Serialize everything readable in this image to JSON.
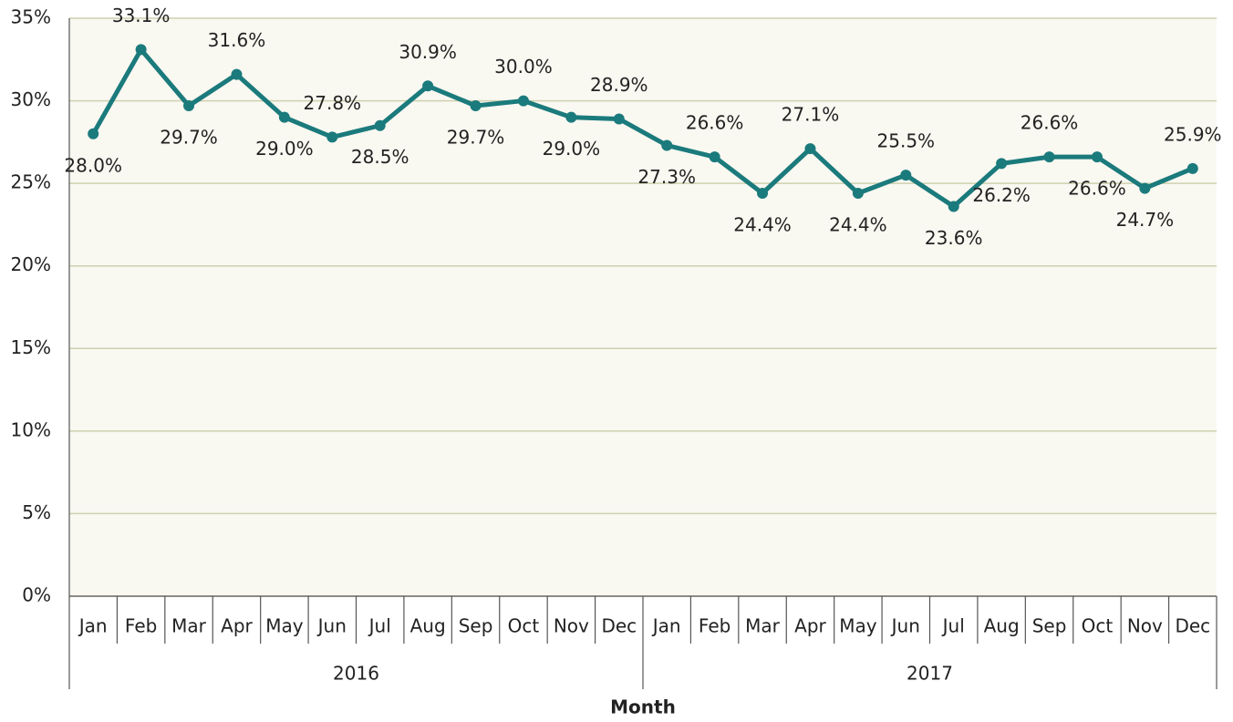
{
  "chart_data": {
    "type": "line",
    "x_label": "Month",
    "groups": [
      {
        "name": "2016",
        "categories": [
          "Jan",
          "Feb",
          "Mar",
          "Apr",
          "May",
          "Jun",
          "Jul",
          "Aug",
          "Sep",
          "Oct",
          "Nov",
          "Dec"
        ]
      },
      {
        "name": "2017",
        "categories": [
          "Jan",
          "Feb",
          "Mar",
          "Apr",
          "May",
          "Jun",
          "Jul",
          "Aug",
          "Sep",
          "Oct",
          "Nov",
          "Dec"
        ]
      }
    ],
    "values": [
      28.0,
      33.1,
      29.7,
      31.6,
      29.0,
      27.8,
      28.5,
      30.9,
      29.7,
      30.0,
      29.0,
      28.9,
      27.3,
      26.6,
      24.4,
      27.1,
      24.4,
      25.5,
      23.6,
      26.2,
      26.6,
      26.6,
      24.7,
      25.9
    ],
    "value_labels": [
      "28.0%",
      "33.1%",
      "29.7%",
      "31.6%",
      "29.0%",
      "27.8%",
      "28.5%",
      "30.9%",
      "29.7%",
      "30.0%",
      "29.0%",
      "28.9%",
      "27.3%",
      "26.6%",
      "24.4%",
      "27.1%",
      "24.4%",
      "25.5%",
      "23.6%",
      "26.2%",
      "26.6%",
      "26.6%",
      "24.7%",
      "25.9%"
    ],
    "color": "#1b7a7c",
    "ylim": [
      0,
      35
    ],
    "yticks": [
      {
        "value": 0,
        "label": "0%"
      },
      {
        "value": 5,
        "label": "5%"
      },
      {
        "value": 10,
        "label": "10%"
      },
      {
        "value": 15,
        "label": "15%"
      },
      {
        "value": 20,
        "label": "20%"
      },
      {
        "value": 25,
        "label": "25%"
      },
      {
        "value": 30,
        "label": "30%"
      },
      {
        "value": 35,
        "label": "35%"
      }
    ],
    "grid": true
  }
}
